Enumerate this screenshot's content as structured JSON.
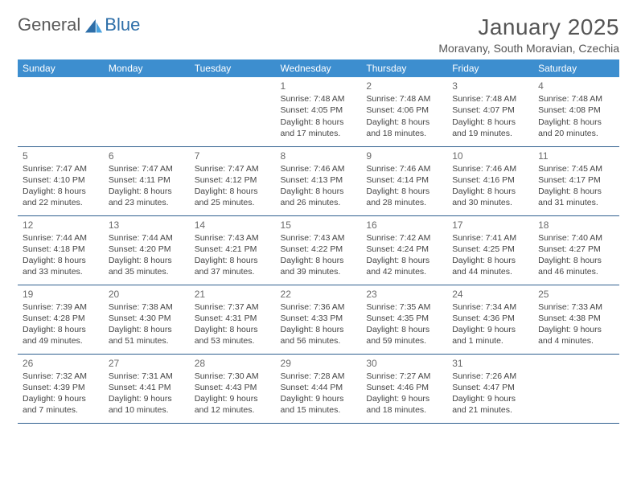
{
  "logo": {
    "text1": "General",
    "text2": "Blue"
  },
  "title": "January 2025",
  "location": "Moravany, South Moravian, Czechia",
  "colors": {
    "header_bg": "#3d8ecf",
    "header_text": "#ffffff",
    "row_border": "#2f5f8f",
    "daynum": "#6a6a6a",
    "body_text": "#444444",
    "logo_gray": "#5a5a5a",
    "logo_blue": "#2d6ea8"
  },
  "weekdays": [
    "Sunday",
    "Monday",
    "Tuesday",
    "Wednesday",
    "Thursday",
    "Friday",
    "Saturday"
  ],
  "weeks": [
    [
      null,
      null,
      null,
      {
        "n": "1",
        "sr": "7:48 AM",
        "ss": "4:05 PM",
        "dl": "8 hours and 17 minutes."
      },
      {
        "n": "2",
        "sr": "7:48 AM",
        "ss": "4:06 PM",
        "dl": "8 hours and 18 minutes."
      },
      {
        "n": "3",
        "sr": "7:48 AM",
        "ss": "4:07 PM",
        "dl": "8 hours and 19 minutes."
      },
      {
        "n": "4",
        "sr": "7:48 AM",
        "ss": "4:08 PM",
        "dl": "8 hours and 20 minutes."
      }
    ],
    [
      {
        "n": "5",
        "sr": "7:47 AM",
        "ss": "4:10 PM",
        "dl": "8 hours and 22 minutes."
      },
      {
        "n": "6",
        "sr": "7:47 AM",
        "ss": "4:11 PM",
        "dl": "8 hours and 23 minutes."
      },
      {
        "n": "7",
        "sr": "7:47 AM",
        "ss": "4:12 PM",
        "dl": "8 hours and 25 minutes."
      },
      {
        "n": "8",
        "sr": "7:46 AM",
        "ss": "4:13 PM",
        "dl": "8 hours and 26 minutes."
      },
      {
        "n": "9",
        "sr": "7:46 AM",
        "ss": "4:14 PM",
        "dl": "8 hours and 28 minutes."
      },
      {
        "n": "10",
        "sr": "7:46 AM",
        "ss": "4:16 PM",
        "dl": "8 hours and 30 minutes."
      },
      {
        "n": "11",
        "sr": "7:45 AM",
        "ss": "4:17 PM",
        "dl": "8 hours and 31 minutes."
      }
    ],
    [
      {
        "n": "12",
        "sr": "7:44 AM",
        "ss": "4:18 PM",
        "dl": "8 hours and 33 minutes."
      },
      {
        "n": "13",
        "sr": "7:44 AM",
        "ss": "4:20 PM",
        "dl": "8 hours and 35 minutes."
      },
      {
        "n": "14",
        "sr": "7:43 AM",
        "ss": "4:21 PM",
        "dl": "8 hours and 37 minutes."
      },
      {
        "n": "15",
        "sr": "7:43 AM",
        "ss": "4:22 PM",
        "dl": "8 hours and 39 minutes."
      },
      {
        "n": "16",
        "sr": "7:42 AM",
        "ss": "4:24 PM",
        "dl": "8 hours and 42 minutes."
      },
      {
        "n": "17",
        "sr": "7:41 AM",
        "ss": "4:25 PM",
        "dl": "8 hours and 44 minutes."
      },
      {
        "n": "18",
        "sr": "7:40 AM",
        "ss": "4:27 PM",
        "dl": "8 hours and 46 minutes."
      }
    ],
    [
      {
        "n": "19",
        "sr": "7:39 AM",
        "ss": "4:28 PM",
        "dl": "8 hours and 49 minutes."
      },
      {
        "n": "20",
        "sr": "7:38 AM",
        "ss": "4:30 PM",
        "dl": "8 hours and 51 minutes."
      },
      {
        "n": "21",
        "sr": "7:37 AM",
        "ss": "4:31 PM",
        "dl": "8 hours and 53 minutes."
      },
      {
        "n": "22",
        "sr": "7:36 AM",
        "ss": "4:33 PM",
        "dl": "8 hours and 56 minutes."
      },
      {
        "n": "23",
        "sr": "7:35 AM",
        "ss": "4:35 PM",
        "dl": "8 hours and 59 minutes."
      },
      {
        "n": "24",
        "sr": "7:34 AM",
        "ss": "4:36 PM",
        "dl": "9 hours and 1 minute."
      },
      {
        "n": "25",
        "sr": "7:33 AM",
        "ss": "4:38 PM",
        "dl": "9 hours and 4 minutes."
      }
    ],
    [
      {
        "n": "26",
        "sr": "7:32 AM",
        "ss": "4:39 PM",
        "dl": "9 hours and 7 minutes."
      },
      {
        "n": "27",
        "sr": "7:31 AM",
        "ss": "4:41 PM",
        "dl": "9 hours and 10 minutes."
      },
      {
        "n": "28",
        "sr": "7:30 AM",
        "ss": "4:43 PM",
        "dl": "9 hours and 12 minutes."
      },
      {
        "n": "29",
        "sr": "7:28 AM",
        "ss": "4:44 PM",
        "dl": "9 hours and 15 minutes."
      },
      {
        "n": "30",
        "sr": "7:27 AM",
        "ss": "4:46 PM",
        "dl": "9 hours and 18 minutes."
      },
      {
        "n": "31",
        "sr": "7:26 AM",
        "ss": "4:47 PM",
        "dl": "9 hours and 21 minutes."
      },
      null
    ]
  ],
  "labels": {
    "sunrise": "Sunrise:",
    "sunset": "Sunset:",
    "daylight": "Daylight:"
  }
}
